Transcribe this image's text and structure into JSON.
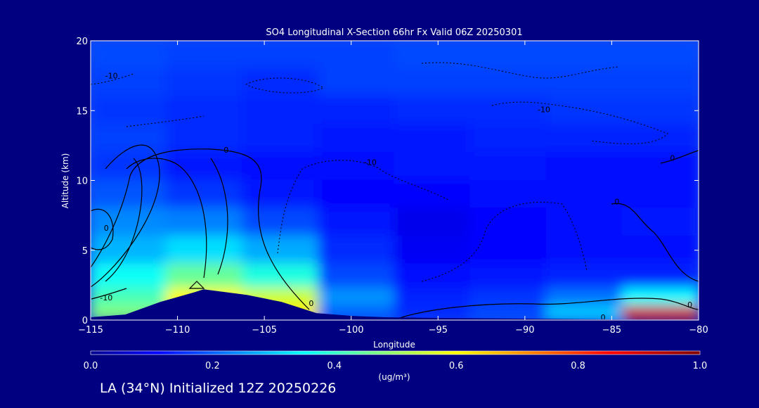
{
  "chart_data": {
    "type": "heatmap",
    "title": "SO4 Longitudinal X-Section 66hr  Fx Valid 06Z 20250301",
    "xlabel": "Longitude",
    "ylabel": "Altitude (km)",
    "xlim": [
      -115,
      -80
    ],
    "ylim": [
      0,
      20
    ],
    "x_ticks": [
      -115,
      -110,
      -105,
      -100,
      -95,
      -90,
      -85,
      -80
    ],
    "y_ticks": [
      0,
      5,
      10,
      15,
      20
    ],
    "grid": false,
    "colorbar": {
      "label": "(ug/m³)",
      "range": [
        0,
        1.0
      ],
      "ticks": [
        "0.0",
        "0.2",
        "0.4",
        "0.6",
        "0.8",
        "1.0"
      ],
      "colormap": "jet"
    },
    "field_rows": [
      {
        "altitude": 19,
        "values": [
          0.18,
          0.17,
          0.17,
          0.17,
          0.18,
          0.18,
          0.18,
          0.18
        ]
      },
      {
        "altitude": 17,
        "values": [
          0.17,
          0.16,
          0.15,
          0.17,
          0.17,
          0.17,
          0.17,
          0.17
        ]
      },
      {
        "altitude": 15,
        "values": [
          0.16,
          0.15,
          0.14,
          0.14,
          0.15,
          0.15,
          0.16,
          0.16
        ]
      },
      {
        "altitude": 13,
        "values": [
          0.17,
          0.15,
          0.14,
          0.13,
          0.13,
          0.14,
          0.14,
          0.14
        ]
      },
      {
        "altitude": 11,
        "values": [
          0.16,
          0.13,
          0.12,
          0.12,
          0.13,
          0.13,
          0.12,
          0.12
        ]
      },
      {
        "altitude": 9,
        "values": [
          0.19,
          0.16,
          0.13,
          0.11,
          0.11,
          0.12,
          0.12,
          0.12
        ]
      },
      {
        "altitude": 7,
        "values": [
          0.24,
          0.23,
          0.18,
          0.13,
          0.09,
          0.11,
          0.12,
          0.13
        ]
      },
      {
        "altitude": 5,
        "values": [
          0.28,
          0.32,
          0.27,
          0.15,
          0.1,
          0.11,
          0.12,
          0.12
        ]
      },
      {
        "altitude": 3,
        "values": [
          0.36,
          0.45,
          0.38,
          0.18,
          0.12,
          0.13,
          0.14,
          0.14
        ]
      },
      {
        "altitude": 1.5,
        "values": [
          0.42,
          0.6,
          0.55,
          0.25,
          0.14,
          0.16,
          0.22,
          0.35
        ]
      },
      {
        "altitude": 0.5,
        "values": [
          0.48,
          0.65,
          0.62,
          0.2,
          0.15,
          0.18,
          0.3,
          0.9
        ]
      }
    ],
    "terrain": {
      "lon": [
        -115,
        -113,
        -111,
        -109,
        -108.5,
        -106,
        -104,
        -102,
        -100,
        -98,
        -95,
        -90,
        -85,
        -80
      ],
      "alt": [
        0.2,
        0.4,
        1.3,
        2.0,
        2.2,
        1.8,
        1.3,
        0.5,
        0.3,
        0.2,
        0.15,
        0.1,
        0.05,
        0.02
      ]
    },
    "contours": [
      {
        "label": "-10",
        "label_lon": -113.8,
        "label_alt": 17.5,
        "dashed": true
      },
      {
        "label": "-10",
        "label_lon": -88.9,
        "label_alt": 15.1,
        "dashed": true
      },
      {
        "label": "-10",
        "label_lon": -98.9,
        "label_alt": 11.3,
        "dashed": true
      },
      {
        "label": "0",
        "label_lon": -107.2,
        "label_alt": 12.2,
        "dashed": false
      },
      {
        "label": "0",
        "label_lon": -81.5,
        "label_alt": 11.6,
        "dashed": false
      },
      {
        "label": "0",
        "label_lon": -84.7,
        "label_alt": 8.5,
        "dashed": false
      },
      {
        "label": "0",
        "label_lon": -114.1,
        "label_alt": 6.6,
        "dashed": false
      },
      {
        "label": "-10",
        "label_lon": -114.1,
        "label_alt": 1.6,
        "dashed": false
      },
      {
        "label": "0",
        "label_lon": -102.3,
        "label_alt": 1.2,
        "dashed": false
      },
      {
        "label": "0",
        "label_lon": -85.5,
        "label_alt": 0.2,
        "dashed": false
      },
      {
        "label": "0",
        "label_lon": -80.5,
        "label_alt": 1.1,
        "dashed": false
      }
    ]
  },
  "footer": "LA (34°N) Initialized 12Z 20250226"
}
